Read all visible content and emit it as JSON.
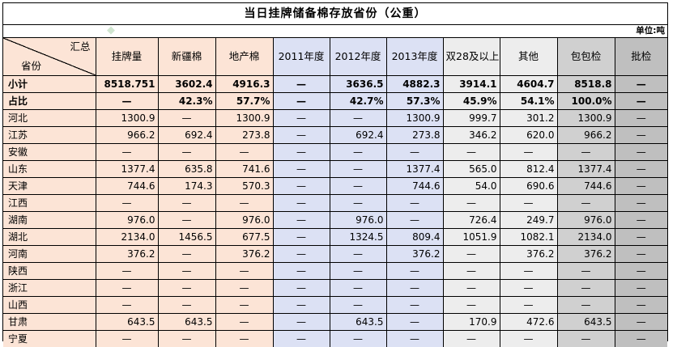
{
  "title": "当日挂牌储备棉存放省份（公重）",
  "unit": "单位:吨",
  "corner": {
    "top": "汇总",
    "bottom": "省份"
  },
  "columns": [
    "挂牌量",
    "新疆棉",
    "地产棉",
    "2011年度",
    "2012年度",
    "2013年度",
    "双28及以上",
    "其他",
    "包包检",
    "批检"
  ],
  "rows": [
    {
      "name": "小计",
      "bold": true,
      "values": [
        "8518.751",
        "3602.4",
        "4916.3",
        "—",
        "3636.5",
        "4882.3",
        "3914.1",
        "4604.7",
        "8518.8",
        "—"
      ]
    },
    {
      "name": "占比",
      "bold": true,
      "values": [
        "—",
        "42.3%",
        "57.7%",
        "—",
        "42.7%",
        "57.3%",
        "45.9%",
        "54.1%",
        "100.0%",
        "—"
      ]
    },
    {
      "name": "河北",
      "values": [
        "1300.9",
        "—",
        "1300.9",
        "—",
        "—",
        "1300.9",
        "999.7",
        "301.2",
        "1300.9",
        "—"
      ]
    },
    {
      "name": "江苏",
      "values": [
        "966.2",
        "692.4",
        "273.8",
        "—",
        "692.4",
        "273.8",
        "346.2",
        "620.0",
        "966.2",
        "—"
      ]
    },
    {
      "name": "安徽",
      "values": [
        "—",
        "—",
        "—",
        "—",
        "—",
        "—",
        "—",
        "—",
        "—",
        "—"
      ]
    },
    {
      "name": "山东",
      "values": [
        "1377.4",
        "635.8",
        "741.6",
        "—",
        "—",
        "1377.4",
        "565.0",
        "812.4",
        "1377.4",
        "—"
      ]
    },
    {
      "name": "天津",
      "values": [
        "744.6",
        "174.3",
        "570.3",
        "—",
        "—",
        "744.6",
        "54.0",
        "690.6",
        "744.6",
        "—"
      ]
    },
    {
      "name": "江西",
      "values": [
        "—",
        "—",
        "—",
        "—",
        "—",
        "—",
        "—",
        "—",
        "—",
        "—"
      ]
    },
    {
      "name": "湖南",
      "values": [
        "976.0",
        "—",
        "976.0",
        "—",
        "976.0",
        "—",
        "726.4",
        "249.7",
        "976.0",
        "—"
      ]
    },
    {
      "name": "湖北",
      "values": [
        "2134.0",
        "1456.5",
        "677.5",
        "—",
        "1324.5",
        "809.4",
        "1051.9",
        "1082.1",
        "2134.0",
        "—"
      ]
    },
    {
      "name": "河南",
      "values": [
        "376.2",
        "—",
        "376.2",
        "—",
        "—",
        "376.2",
        "—",
        "376.2",
        "376.2",
        "—"
      ]
    },
    {
      "name": "陕西",
      "values": [
        "—",
        "—",
        "—",
        "—",
        "—",
        "—",
        "—",
        "—",
        "—",
        "—"
      ]
    },
    {
      "name": "浙江",
      "values": [
        "—",
        "—",
        "—",
        "—",
        "—",
        "—",
        "—",
        "—",
        "—",
        "—"
      ]
    },
    {
      "name": "山西",
      "values": [
        "—",
        "—",
        "—",
        "—",
        "—",
        "—",
        "—",
        "—",
        "—",
        "—"
      ]
    },
    {
      "name": "甘肃",
      "values": [
        "643.5",
        "643.5",
        "—",
        "—",
        "643.5",
        "—",
        "170.9",
        "472.6",
        "643.5",
        "—"
      ]
    },
    {
      "name": "宁夏",
      "values": [
        "—",
        "—",
        "—",
        "—",
        "—",
        "—",
        "—",
        "—",
        "—",
        "—"
      ]
    }
  ],
  "colors": {
    "peach": "#fce4d6",
    "blue": "#dce1f4",
    "light_gray": "#ededed",
    "mid_gray": "#d0d0d0",
    "dark_gray": "#bfbfbf"
  }
}
